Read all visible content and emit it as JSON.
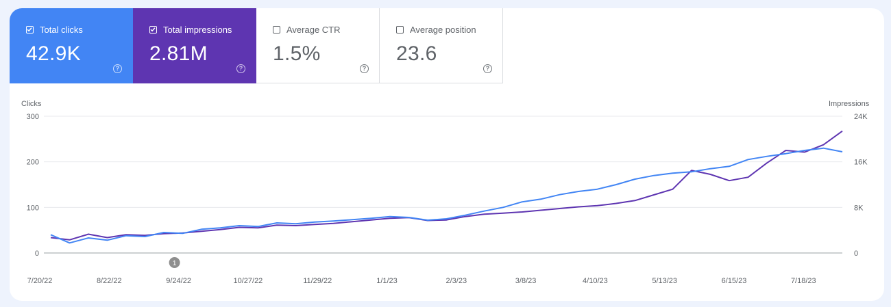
{
  "metrics": {
    "clicks": {
      "label": "Total clicks",
      "value": "42.9K",
      "checked": true,
      "color": "#4285f4"
    },
    "impressions": {
      "label": "Total impressions",
      "value": "2.81M",
      "checked": true,
      "color": "#5e35b1"
    },
    "ctr": {
      "label": "Average CTR",
      "value": "1.5%",
      "checked": false
    },
    "position": {
      "label": "Average position",
      "value": "23.6",
      "checked": false
    }
  },
  "chart": {
    "left_axis_title": "Clicks",
    "right_axis_title": "Impressions",
    "annotation_label": "1"
  },
  "chart_data": {
    "type": "line",
    "x_tick_labels": [
      "7/20/22",
      "8/22/22",
      "9/24/22",
      "10/27/22",
      "11/29/22",
      "1/1/23",
      "2/3/23",
      "3/8/23",
      "4/10/23",
      "5/13/23",
      "6/15/23",
      "7/18/23"
    ],
    "left_axis": {
      "title": "Clicks",
      "ticks": [
        "0",
        "100",
        "200",
        "300"
      ],
      "range": [
        0,
        300
      ]
    },
    "right_axis": {
      "title": "Impressions",
      "ticks": [
        "0",
        "8K",
        "16K",
        "24K"
      ],
      "range": [
        0,
        24000
      ]
    },
    "annotations": [
      {
        "label": "1",
        "date": "9/24/22"
      }
    ],
    "series": [
      {
        "name": "Clicks",
        "axis": "left",
        "color": "#4285f4",
        "values": [
          40,
          22,
          33,
          28,
          38,
          36,
          45,
          43,
          52,
          55,
          60,
          58,
          66,
          64,
          68,
          70,
          73,
          76,
          80,
          78,
          72,
          75,
          83,
          92,
          100,
          112,
          118,
          128,
          135,
          140,
          150,
          162,
          170,
          175,
          178,
          185,
          190,
          205,
          212,
          218,
          225,
          230,
          222
        ]
      },
      {
        "name": "Impressions",
        "axis": "right",
        "color": "#5e35b1",
        "values": [
          2700,
          2300,
          3300,
          2700,
          3200,
          3100,
          3400,
          3500,
          3800,
          4100,
          4500,
          4400,
          4900,
          4800,
          5000,
          5200,
          5500,
          5800,
          6100,
          6200,
          5700,
          5800,
          6400,
          6800,
          7000,
          7200,
          7500,
          7800,
          8100,
          8300,
          8700,
          9200,
          10200,
          11200,
          14500,
          13800,
          12700,
          13300,
          15800,
          18000,
          17700,
          19000,
          21400
        ]
      }
    ]
  }
}
